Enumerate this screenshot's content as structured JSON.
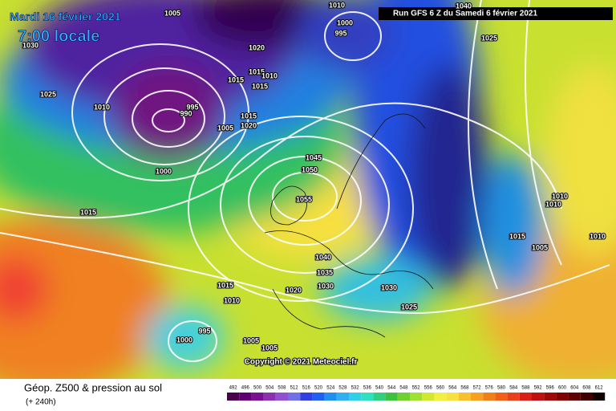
{
  "header": {
    "date": "Mardi 16 février 2021",
    "time": "7:00 locale",
    "run": "Run GFS 6 Z du Samedi 6 février 2021"
  },
  "isobar_labels": [
    "1005",
    "1030",
    "1020",
    "1025",
    "1010",
    "1015",
    "1015",
    "1010",
    "1015",
    "995",
    "990",
    "1000",
    "1015",
    "1005",
    "1020",
    "1015",
    "1045",
    "1050",
    "1055",
    "1040",
    "1035",
    "1030",
    "1020",
    "1015",
    "1010",
    "995",
    "1000",
    "1005",
    "1005",
    "1030",
    "1025",
    "1025",
    "1040",
    "995",
    "1000",
    "1010",
    "1010",
    "1015",
    "1005",
    "1010",
    "1010"
  ],
  "copyright": "Copyright © 2021 Meteociel.fr",
  "footer": {
    "title": "Géop. Z500 & pression au sol",
    "lead": "(+ 240h)"
  },
  "scale": [
    492,
    496,
    500,
    504,
    508,
    512,
    516,
    520,
    524,
    528,
    532,
    536,
    540,
    544,
    548,
    552,
    556,
    560,
    564,
    568,
    572,
    576,
    580,
    584,
    588,
    592,
    596,
    600,
    604,
    608,
    612
  ]
}
